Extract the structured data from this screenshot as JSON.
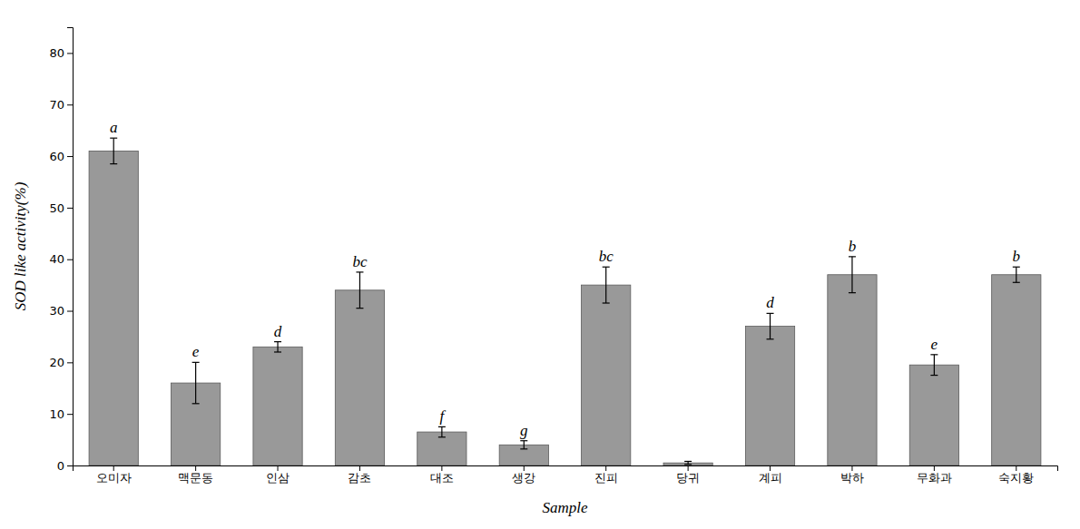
{
  "chart_data": {
    "type": "bar",
    "categories": [
      "오미자",
      "맥문동",
      "인삼",
      "감초",
      "대조",
      "생강",
      "진피",
      "당귀",
      "계피",
      "박하",
      "무화과",
      "숙지황"
    ],
    "values": [
      61.0,
      16.0,
      23.0,
      34.0,
      6.5,
      4.0,
      35.0,
      0.5,
      27.0,
      37.0,
      19.5,
      37.0
    ],
    "errors": [
      2.5,
      4.0,
      1.0,
      3.5,
      1.0,
      0.8,
      3.5,
      0.3,
      2.5,
      3.5,
      2.0,
      1.5
    ],
    "letters": [
      "a",
      "e",
      "d",
      "bc",
      "f",
      "g",
      "bc",
      null,
      "d",
      "b",
      "e",
      "b"
    ],
    "color": "#999999",
    "xlabel": "Sample",
    "ylabel": "SOD like activity(%)",
    "ylim": [
      0,
      85
    ],
    "yticks": [
      0,
      10,
      20,
      30,
      40,
      50,
      60,
      70,
      80
    ],
    "grid": false
  }
}
